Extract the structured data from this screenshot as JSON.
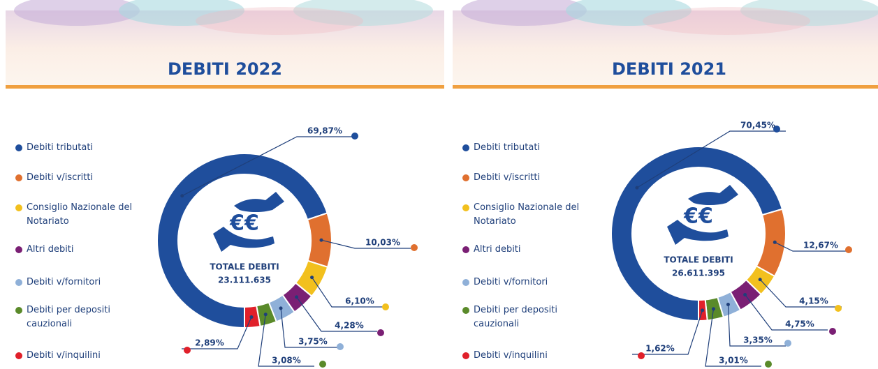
{
  "chart_data": [
    {
      "type": "pie",
      "title": "DEBITI 2022",
      "center_title": "TOTALE DEBITI",
      "center_value": "23.111.635",
      "categories": [
        "Debiti tributati",
        "Debiti v/iscritti",
        "Consiglio Nazionale del Notariato",
        "Altri debiti",
        "Debiti v/fornitori",
        "Debiti per depositi cauzionali",
        "Debiti v/inquilini"
      ],
      "values": [
        69.87,
        10.03,
        6.1,
        4.28,
        3.75,
        3.08,
        2.89
      ],
      "value_labels": [
        "69,87%",
        "10,03%",
        "6,10%",
        "4,28%",
        "3,75%",
        "3,08%",
        "2,89%"
      ],
      "colors": [
        "#1f4e9c",
        "#e0702f",
        "#f2c01e",
        "#7a1f74",
        "#8fb0d8",
        "#5a8a2a",
        "#e0202a"
      ]
    },
    {
      "type": "pie",
      "title": "DEBITI 2021",
      "center_title": "TOTALE DEBITI",
      "center_value": "26.611.395",
      "categories": [
        "Debiti tributati",
        "Debiti v/iscritti",
        "Consiglio Nazionale del Notariato",
        "Altri debiti",
        "Debiti v/fornitori",
        "Debiti per depositi cauzionali",
        "Debiti v/inquilini"
      ],
      "values": [
        70.45,
        12.67,
        4.15,
        4.75,
        3.35,
        3.01,
        1.62
      ],
      "value_labels": [
        "70,45%",
        "12,67%",
        "4,15%",
        "4,75%",
        "3,35%",
        "3,01%",
        "1,62%"
      ],
      "colors": [
        "#1f4e9c",
        "#e0702f",
        "#f2c01e",
        "#7a1f74",
        "#8fb0d8",
        "#5a8a2a",
        "#e0202a"
      ]
    }
  ]
}
